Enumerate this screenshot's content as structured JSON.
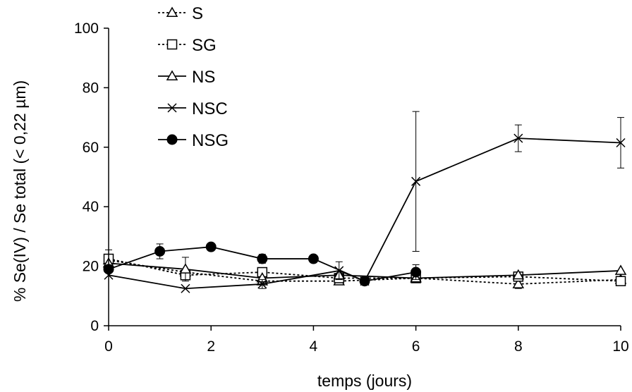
{
  "chart_data": {
    "type": "line",
    "title": "",
    "xlabel": "temps (jours)",
    "ylabel": "% Se(IV) / Se total (< 0,22 µm)",
    "xlim": [
      0,
      10
    ],
    "ylim": [
      0,
      100
    ],
    "xticks": [
      0,
      2,
      4,
      6,
      8,
      10
    ],
    "yticks": [
      0,
      20,
      40,
      60,
      80,
      100
    ],
    "grid": false,
    "legend_position": "top-left",
    "series": [
      {
        "name": "S",
        "marker": "triangle-open",
        "line": "dotted",
        "points": [
          {
            "x": 0,
            "y": 22,
            "err": 0
          },
          {
            "x": 1.5,
            "y": 18,
            "err": 0
          },
          {
            "x": 3,
            "y": 15,
            "err": 0
          },
          {
            "x": 4.5,
            "y": 15,
            "err": 0
          },
          {
            "x": 6,
            "y": 16,
            "err": 0
          },
          {
            "x": 8,
            "y": 14,
            "err": 1.5
          },
          {
            "x": 10,
            "y": 15.5,
            "err": 0
          }
        ]
      },
      {
        "name": "SG",
        "marker": "square-open",
        "line": "dotted",
        "points": [
          {
            "x": 0,
            "y": 22.5,
            "err": 3
          },
          {
            "x": 1.5,
            "y": 17,
            "err": 0
          },
          {
            "x": 3,
            "y": 18,
            "err": 0
          },
          {
            "x": 4.5,
            "y": 16,
            "err": 0
          },
          {
            "x": 6,
            "y": 16,
            "err": 0
          },
          {
            "x": 8,
            "y": 16.5,
            "err": 0
          },
          {
            "x": 10,
            "y": 15,
            "err": 0
          }
        ]
      },
      {
        "name": "NS",
        "marker": "triangle-open",
        "line": "solid",
        "points": [
          {
            "x": 0,
            "y": 21,
            "err": 0
          },
          {
            "x": 1.5,
            "y": 19,
            "err": 4
          },
          {
            "x": 3,
            "y": 16,
            "err": 0
          },
          {
            "x": 4.5,
            "y": 17,
            "err": 0
          },
          {
            "x": 6,
            "y": 16,
            "err": 0
          },
          {
            "x": 8,
            "y": 17,
            "err": 0
          },
          {
            "x": 10,
            "y": 18.5,
            "err": 0
          }
        ]
      },
      {
        "name": "NSC",
        "marker": "x",
        "line": "solid",
        "points": [
          {
            "x": 0,
            "y": 17,
            "err": 0
          },
          {
            "x": 1.5,
            "y": 12.5,
            "err": 0
          },
          {
            "x": 3,
            "y": 14,
            "err": 1.5
          },
          {
            "x": 4.5,
            "y": 18.5,
            "err": 3
          },
          {
            "x": 5,
            "y": 15,
            "err": 0
          },
          {
            "x": 6,
            "y": 48.5,
            "err": 23.5
          },
          {
            "x": 8,
            "y": 63,
            "err": 4.5
          },
          {
            "x": 10,
            "y": 61.5,
            "err": 8.5
          }
        ]
      },
      {
        "name": "NSG",
        "marker": "circle-filled",
        "line": "solid",
        "points": [
          {
            "x": 0,
            "y": 19,
            "err": 0
          },
          {
            "x": 1,
            "y": 25,
            "err": 2.5
          },
          {
            "x": 2,
            "y": 26.5,
            "err": 0
          },
          {
            "x": 3,
            "y": 22.5,
            "err": 1.5
          },
          {
            "x": 4,
            "y": 22.5,
            "err": 0
          },
          {
            "x": 5,
            "y": 15,
            "err": 0
          },
          {
            "x": 6,
            "y": 18,
            "err": 2.5
          }
        ]
      }
    ]
  }
}
